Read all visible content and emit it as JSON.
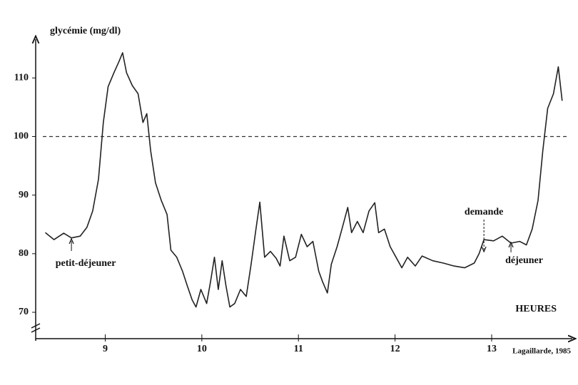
{
  "chart_data": {
    "type": "line",
    "y_label": "glycémie (mg/dl)",
    "x_label": "HEURES",
    "credit": "Lagaillarde, 1985",
    "xlim": [
      8.28,
      13.82
    ],
    "xticks": [
      9,
      10,
      11,
      12,
      13
    ],
    "ylim": [
      65.5,
      116
    ],
    "yticks": [
      70,
      80,
      90,
      100,
      110
    ],
    "reference_line": 100,
    "color": "#222222",
    "annotations": [
      {
        "text": "petit-déjeuner",
        "x": 8.65
      },
      {
        "text": "demande",
        "x": 12.92
      },
      {
        "text": "déjeuner",
        "x": 13.2
      }
    ],
    "x": [
      8.38,
      8.47,
      8.57,
      8.65,
      8.74,
      8.81,
      8.87,
      8.93,
      8.98,
      9.03,
      9.09,
      9.14,
      9.18,
      9.22,
      9.28,
      9.34,
      9.39,
      9.43,
      9.47,
      9.52,
      9.58,
      9.64,
      9.68,
      9.74,
      9.8,
      9.85,
      9.9,
      9.94,
      9.99,
      10.05,
      10.09,
      10.13,
      10.17,
      10.21,
      10.25,
      10.29,
      10.34,
      10.4,
      10.46,
      10.51,
      10.56,
      10.6,
      10.65,
      10.71,
      10.77,
      10.81,
      10.85,
      10.91,
      10.97,
      11.03,
      11.09,
      11.15,
      11.21,
      11.25,
      11.3,
      11.34,
      11.4,
      11.46,
      11.51,
      11.55,
      11.61,
      11.67,
      11.73,
      11.79,
      11.83,
      11.89,
      11.95,
      12.01,
      12.07,
      12.13,
      12.21,
      12.28,
      12.39,
      12.5,
      12.61,
      12.72,
      12.82,
      12.87,
      12.92,
      13.02,
      13.11,
      13.2,
      13.29,
      13.36,
      13.42,
      13.48,
      13.53,
      13.58,
      13.64,
      13.69,
      13.73
    ],
    "values": [
      83.6,
      82.4,
      83.5,
      82.7,
      83.0,
      84.5,
      87.3,
      92.7,
      102.4,
      108.5,
      110.9,
      112.7,
      114.3,
      110.9,
      108.7,
      107.3,
      102.4,
      103.9,
      97.6,
      92.1,
      89.1,
      86.7,
      80.6,
      79.4,
      77.0,
      74.5,
      72.1,
      70.9,
      73.9,
      71.5,
      75.2,
      79.4,
      73.9,
      78.8,
      74.5,
      70.9,
      71.5,
      73.9,
      72.7,
      78.2,
      84.2,
      88.8,
      79.4,
      80.4,
      79.2,
      77.9,
      83.0,
      78.8,
      79.4,
      83.3,
      81.2,
      82.1,
      77.0,
      75.2,
      73.3,
      78.2,
      81.2,
      84.8,
      87.9,
      83.6,
      85.5,
      83.6,
      87.3,
      88.7,
      83.6,
      84.2,
      81.2,
      79.4,
      77.6,
      79.4,
      77.9,
      79.6,
      78.8,
      78.4,
      77.9,
      77.6,
      78.4,
      80.0,
      82.4,
      82.2,
      83.0,
      81.8,
      82.1,
      81.5,
      84.2,
      89.1,
      97.6,
      104.8,
      107.3,
      111.9,
      106.1
    ]
  }
}
